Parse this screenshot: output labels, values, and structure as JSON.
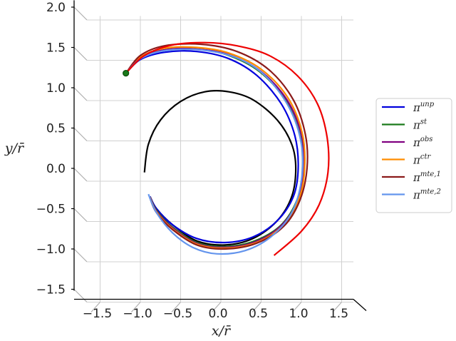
{
  "chart_data": {
    "type": "line",
    "title": "",
    "xlabel": "x/r̄",
    "ylabel": "y/r̄",
    "xlim": [
      -1.75,
      1.65
    ],
    "ylim": [
      -1.55,
      2.05
    ],
    "x_ticks": [
      "−1.5",
      "−1.0",
      "−0.5",
      "0.0",
      "0.5",
      "1.0",
      "1.5"
    ],
    "y_ticks": [
      "2.0",
      "1.5",
      "1.0",
      "0.5",
      "0.0",
      "−0.5",
      "−1.0",
      "−1.5"
    ],
    "grid": true,
    "legend_position": "right",
    "start_point": {
      "x": -1.18,
      "y": 1.18,
      "color": "#1a7a1a"
    },
    "series": [
      {
        "name": "π^unp",
        "base": "π",
        "sup": "unp",
        "color": "#0000dd"
      },
      {
        "name": "π^st",
        "base": "π",
        "sup": "st",
        "color": "#1a7a1a"
      },
      {
        "name": "π^obs",
        "base": "π",
        "sup": "obs",
        "color": "#800080"
      },
      {
        "name": "π^ctr",
        "base": "π",
        "sup": "ctr",
        "color": "#ff8c00"
      },
      {
        "name": "π^mte,1",
        "base": "π",
        "sup": "mte,1",
        "color": "#8b1a1a"
      },
      {
        "name": "π^mte,2",
        "base": "π",
        "sup": "mte,2",
        "color": "#6495ed"
      }
    ],
    "reference_series": [
      {
        "color": "#000000",
        "description_shown": "black circle",
        "points": []
      },
      {
        "color": "#ee0000",
        "description_shown": "red curve",
        "points": []
      }
    ],
    "curves": [
      {
        "color": "#000000",
        "points": [
          [
            -0.95,
            -0.05
          ],
          [
            -0.9,
            0.3
          ],
          [
            -0.75,
            0.6
          ],
          [
            -0.5,
            0.83
          ],
          [
            -0.2,
            0.95
          ],
          [
            0.1,
            0.95
          ],
          [
            0.4,
            0.85
          ],
          [
            0.7,
            0.6
          ],
          [
            0.88,
            0.3
          ],
          [
            0.93,
            0.0
          ],
          [
            0.88,
            -0.35
          ],
          [
            0.7,
            -0.65
          ],
          [
            0.4,
            -0.87
          ],
          [
            0.05,
            -0.95
          ],
          [
            -0.3,
            -0.9
          ],
          [
            -0.6,
            -0.7
          ],
          [
            -0.8,
            -0.5
          ],
          [
            -0.88,
            -0.35
          ]
        ]
      },
      {
        "color": "#0000dd",
        "points": [
          [
            -1.18,
            1.18
          ],
          [
            -1.0,
            1.35
          ],
          [
            -0.7,
            1.44
          ],
          [
            -0.3,
            1.45
          ],
          [
            0.1,
            1.36
          ],
          [
            0.45,
            1.15
          ],
          [
            0.75,
            0.8
          ],
          [
            0.92,
            0.4
          ],
          [
            0.96,
            0.0
          ],
          [
            0.9,
            -0.35
          ],
          [
            0.7,
            -0.65
          ],
          [
            0.4,
            -0.85
          ],
          [
            0.05,
            -0.92
          ],
          [
            -0.3,
            -0.87
          ],
          [
            -0.6,
            -0.7
          ],
          [
            -0.8,
            -0.5
          ],
          [
            -0.88,
            -0.35
          ]
        ]
      },
      {
        "color": "#1a7a1a",
        "points": [
          [
            -1.18,
            1.18
          ],
          [
            -1.0,
            1.37
          ],
          [
            -0.7,
            1.47
          ],
          [
            -0.3,
            1.48
          ],
          [
            0.1,
            1.4
          ],
          [
            0.48,
            1.2
          ],
          [
            0.8,
            0.85
          ],
          [
            0.98,
            0.42
          ],
          [
            1.02,
            0.0
          ],
          [
            0.95,
            -0.38
          ],
          [
            0.75,
            -0.7
          ],
          [
            0.42,
            -0.9
          ],
          [
            0.05,
            -0.97
          ],
          [
            -0.3,
            -0.92
          ],
          [
            -0.6,
            -0.73
          ],
          [
            -0.8,
            -0.52
          ],
          [
            -0.88,
            -0.36
          ]
        ]
      },
      {
        "color": "#800080",
        "points": [
          [
            -1.18,
            1.18
          ],
          [
            -1.0,
            1.37
          ],
          [
            -0.7,
            1.47
          ],
          [
            -0.3,
            1.48
          ],
          [
            0.1,
            1.41
          ],
          [
            0.5,
            1.2
          ],
          [
            0.82,
            0.85
          ],
          [
            1.0,
            0.42
          ],
          [
            1.03,
            0.0
          ],
          [
            0.96,
            -0.38
          ],
          [
            0.76,
            -0.7
          ],
          [
            0.43,
            -0.91
          ],
          [
            0.05,
            -0.98
          ],
          [
            -0.3,
            -0.93
          ],
          [
            -0.6,
            -0.74
          ],
          [
            -0.8,
            -0.53
          ],
          [
            -0.88,
            -0.36
          ]
        ]
      },
      {
        "color": "#ff8c00",
        "points": [
          [
            -1.18,
            1.18
          ],
          [
            -1.0,
            1.38
          ],
          [
            -0.7,
            1.49
          ],
          [
            -0.3,
            1.5
          ],
          [
            0.1,
            1.43
          ],
          [
            0.5,
            1.23
          ],
          [
            0.83,
            0.88
          ],
          [
            1.01,
            0.44
          ],
          [
            1.04,
            0.0
          ],
          [
            0.97,
            -0.38
          ],
          [
            0.77,
            -0.71
          ],
          [
            0.44,
            -0.92
          ],
          [
            0.05,
            -0.99
          ],
          [
            -0.3,
            -0.94
          ],
          [
            -0.6,
            -0.75
          ],
          [
            -0.8,
            -0.54
          ],
          [
            -0.88,
            -0.36
          ]
        ]
      },
      {
        "color": "#8b1a1a",
        "points": [
          [
            -1.18,
            1.18
          ],
          [
            -1.0,
            1.4
          ],
          [
            -0.7,
            1.52
          ],
          [
            -0.25,
            1.54
          ],
          [
            0.2,
            1.45
          ],
          [
            0.6,
            1.22
          ],
          [
            0.9,
            0.85
          ],
          [
            1.05,
            0.42
          ],
          [
            1.07,
            0.0
          ],
          [
            0.98,
            -0.4
          ],
          [
            0.78,
            -0.72
          ],
          [
            0.44,
            -0.93
          ],
          [
            0.05,
            -1.0
          ],
          [
            -0.3,
            -0.95
          ],
          [
            -0.6,
            -0.76
          ],
          [
            -0.8,
            -0.55
          ],
          [
            -0.88,
            -0.37
          ]
        ]
      },
      {
        "color": "#6495ed",
        "points": [
          [
            -1.18,
            1.18
          ],
          [
            -1.0,
            1.36
          ],
          [
            -0.7,
            1.46
          ],
          [
            -0.25,
            1.47
          ],
          [
            0.2,
            1.37
          ],
          [
            0.55,
            1.15
          ],
          [
            0.85,
            0.75
          ],
          [
            1.0,
            0.3
          ],
          [
            1.0,
            -0.15
          ],
          [
            0.88,
            -0.55
          ],
          [
            0.62,
            -0.85
          ],
          [
            0.3,
            -1.02
          ],
          [
            -0.05,
            -1.06
          ],
          [
            -0.35,
            -0.98
          ],
          [
            -0.6,
            -0.8
          ],
          [
            -0.8,
            -0.55
          ],
          [
            -0.9,
            -0.32
          ]
        ]
      },
      {
        "color": "#ee0000",
        "points": [
          [
            -1.18,
            1.18
          ],
          [
            -0.95,
            1.4
          ],
          [
            -0.6,
            1.53
          ],
          [
            -0.2,
            1.56
          ],
          [
            0.2,
            1.52
          ],
          [
            0.6,
            1.4
          ],
          [
            0.95,
            1.15
          ],
          [
            1.2,
            0.8
          ],
          [
            1.32,
            0.38
          ],
          [
            1.33,
            -0.05
          ],
          [
            1.22,
            -0.45
          ],
          [
            1.0,
            -0.78
          ],
          [
            0.66,
            -1.08
          ]
        ]
      }
    ]
  }
}
